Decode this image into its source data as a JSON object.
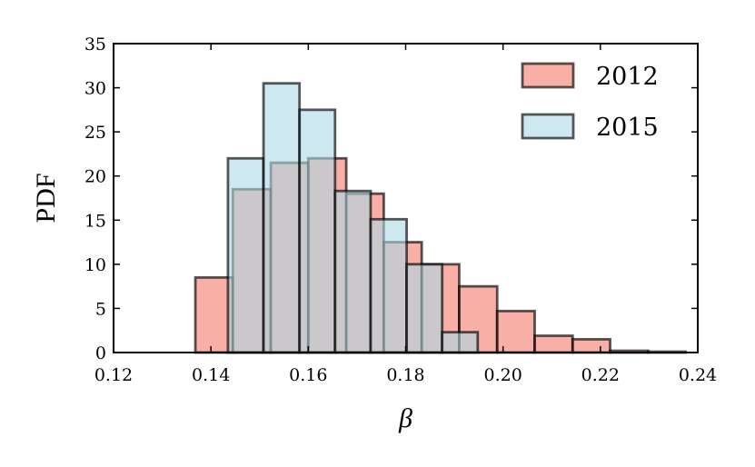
{
  "chart_data": {
    "type": "bar",
    "subtype": "overlapping-histogram",
    "xlabel": "β",
    "ylabel": "PDF",
    "xlim": [
      0.12,
      0.24
    ],
    "ylim": [
      0,
      35
    ],
    "xticks": [
      "0.12",
      "0.14",
      "0.16",
      "0.18",
      "0.20",
      "0.22",
      "0.24"
    ],
    "yticks": [
      "0",
      "5",
      "10",
      "15",
      "20",
      "25",
      "30",
      "35"
    ],
    "legend_position": "top-right",
    "grid": false,
    "series": [
      {
        "name": "2012",
        "color": "#f4796b",
        "bins": [
          {
            "x0": 0.1368,
            "x1": 0.1445,
            "y": 8.5
          },
          {
            "x0": 0.1445,
            "x1": 0.1523,
            "y": 18.5
          },
          {
            "x0": 0.1523,
            "x1": 0.16,
            "y": 21.5
          },
          {
            "x0": 0.16,
            "x1": 0.1678,
            "y": 22.0
          },
          {
            "x0": 0.1678,
            "x1": 0.1755,
            "y": 18.0
          },
          {
            "x0": 0.1755,
            "x1": 0.1833,
            "y": 12.5
          },
          {
            "x0": 0.1833,
            "x1": 0.191,
            "y": 10.0
          },
          {
            "x0": 0.191,
            "x1": 0.1988,
            "y": 7.5
          },
          {
            "x0": 0.1988,
            "x1": 0.2065,
            "y": 4.7
          },
          {
            "x0": 0.2065,
            "x1": 0.2143,
            "y": 1.9
          },
          {
            "x0": 0.2143,
            "x1": 0.222,
            "y": 1.5
          },
          {
            "x0": 0.222,
            "x1": 0.2298,
            "y": 0.2
          },
          {
            "x0": 0.2298,
            "x1": 0.2375,
            "y": 0.1
          }
        ]
      },
      {
        "name": "2015",
        "color": "#add8e6",
        "bins": [
          {
            "x0": 0.1435,
            "x1": 0.1508,
            "y": 22.0
          },
          {
            "x0": 0.1508,
            "x1": 0.1582,
            "y": 30.5
          },
          {
            "x0": 0.1582,
            "x1": 0.1655,
            "y": 27.5
          },
          {
            "x0": 0.1655,
            "x1": 0.1728,
            "y": 18.3
          },
          {
            "x0": 0.1728,
            "x1": 0.1802,
            "y": 15.1
          },
          {
            "x0": 0.1802,
            "x1": 0.1875,
            "y": 10.0
          },
          {
            "x0": 0.1875,
            "x1": 0.1948,
            "y": 2.3
          },
          {
            "x0": 0.1948,
            "x1": 0.2021,
            "y": 0.0
          }
        ]
      }
    ]
  }
}
